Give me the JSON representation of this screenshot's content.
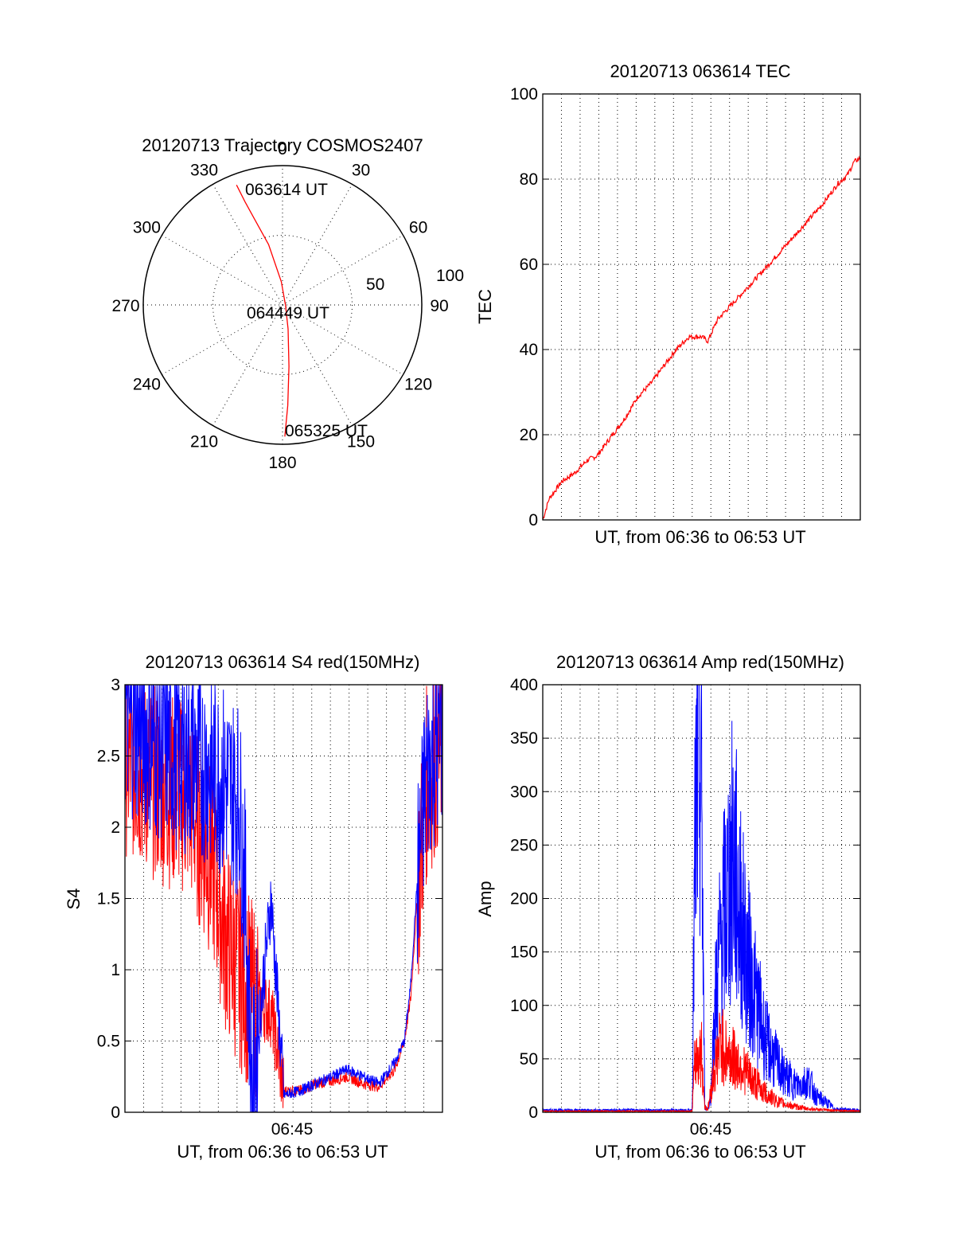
{
  "colors": {
    "red": "#ff0000",
    "blue": "#0000ff",
    "axis": "#000000"
  },
  "chart_data": [
    {
      "type": "polar",
      "title": "20120713 Trajectory COSMOS2407",
      "azimuth_labels": [
        "0",
        "30",
        "60",
        "90",
        "120",
        "150",
        "180",
        "210",
        "240",
        "270",
        "300",
        "330"
      ],
      "radial_labels": [
        "50",
        "100"
      ],
      "grid": true,
      "time_labels": [
        "063614 UT",
        "064449 UT",
        "065325 UT"
      ],
      "series": [
        {
          "color": "#ff0000",
          "points": [
            {
              "az": 339,
              "el": 7
            },
            {
              "az": 340,
              "el": 19
            },
            {
              "az": 342,
              "el": 32
            },
            {
              "az": 347,
              "el": 50
            },
            {
              "az": 357,
              "el": 75
            },
            {
              "az": 100,
              "el": 88
            },
            {
              "az": 167,
              "el": 74
            },
            {
              "az": 174,
              "el": 50
            },
            {
              "az": 177,
              "el": 25
            },
            {
              "az": 179,
              "el": 5
            }
          ]
        }
      ]
    },
    {
      "type": "line",
      "title": "20120713 063614 TEC",
      "xlabel": "UT, from 06:36 to 06:53 UT",
      "ylabel": "TEC",
      "ylim": [
        0,
        100
      ],
      "yticks": [
        "0",
        "20",
        "40",
        "60",
        "80",
        "100"
      ],
      "xlim": [
        0,
        1
      ],
      "grid": true,
      "series": [
        {
          "color": "#ff0000",
          "x": [
            0.0,
            0.02,
            0.06,
            0.1,
            0.14,
            0.17,
            0.22,
            0.26,
            0.3,
            0.34,
            0.38,
            0.42,
            0.46,
            0.5,
            0.52,
            0.55,
            0.6,
            0.65,
            0.7,
            0.76,
            0.82,
            0.88,
            0.93,
            0.96,
            0.98,
            1.0
          ],
          "y": [
            0,
            5,
            9,
            11,
            14,
            15,
            20,
            24,
            29,
            32,
            36,
            40,
            43,
            43,
            42,
            47,
            51,
            55,
            59,
            64,
            69,
            74,
            79,
            81,
            84,
            85
          ]
        }
      ]
    },
    {
      "type": "line",
      "title": "20120713 063614 S4 red(150MHz)",
      "xlabel": "UT, from 06:36 to 06:53 UT",
      "xticks": [
        "06:45"
      ],
      "ylabel": "S4",
      "ylim": [
        0,
        3
      ],
      "yticks": [
        "0",
        "0.5",
        "1",
        "1.5",
        "2",
        "2.5",
        "3"
      ],
      "xlim": [
        0,
        1
      ],
      "grid": true,
      "series": [
        {
          "color": "#ff0000",
          "x": [
            0.0,
            0.1,
            0.2,
            0.28,
            0.32,
            0.36,
            0.38,
            0.4,
            0.46,
            0.5,
            0.55,
            0.6,
            0.65,
            0.7,
            0.75,
            0.8,
            0.85,
            0.88,
            0.9,
            0.92,
            0.95,
            1.0
          ],
          "y": [
            2.5,
            2.3,
            2.2,
            1.7,
            1.2,
            1.0,
            0.9,
            0.8,
            0.7,
            0.15,
            0.15,
            0.2,
            0.22,
            0.25,
            0.2,
            0.18,
            0.3,
            0.5,
            0.8,
            1.5,
            2.3,
            2.6
          ]
        },
        {
          "color": "#0000ff",
          "x": [
            0.0,
            0.1,
            0.2,
            0.28,
            0.32,
            0.36,
            0.38,
            0.4,
            0.46,
            0.5,
            0.55,
            0.6,
            0.65,
            0.7,
            0.75,
            0.8,
            0.85,
            0.88,
            0.9,
            0.92,
            0.95,
            1.0
          ],
          "y": [
            2.8,
            2.6,
            2.5,
            2.4,
            2.3,
            2.2,
            1.5,
            0.1,
            1.5,
            0.12,
            0.15,
            0.2,
            0.25,
            0.3,
            0.25,
            0.2,
            0.35,
            0.5,
            0.9,
            1.6,
            2.4,
            2.7
          ]
        }
      ]
    },
    {
      "type": "line",
      "title": "20120713 063614 Amp red(150MHz)",
      "xlabel": "UT, from 06:36 to 06:53 UT",
      "xticks": [
        "06:45"
      ],
      "ylabel": "Amp",
      "ylim": [
        0,
        400
      ],
      "yticks": [
        "0",
        "50",
        "100",
        "150",
        "200",
        "250",
        "300",
        "350",
        "400"
      ],
      "xlim": [
        0,
        1
      ],
      "grid": true,
      "series": [
        {
          "color": "#0000ff",
          "x": [
            0.0,
            0.47,
            0.48,
            0.49,
            0.5,
            0.51,
            0.52,
            0.53,
            0.54,
            0.56,
            0.58,
            0.6,
            0.62,
            0.64,
            0.66,
            0.68,
            0.7,
            0.72,
            0.74,
            0.76,
            0.8,
            0.84,
            0.86,
            0.9,
            0.92,
            1.0
          ],
          "y": [
            2,
            2,
            250,
            340,
            300,
            5,
            3,
            15,
            90,
            160,
            200,
            240,
            190,
            150,
            120,
            95,
            70,
            55,
            45,
            35,
            25,
            30,
            15,
            8,
            3,
            2
          ]
        },
        {
          "color": "#ff0000",
          "x": [
            0.0,
            0.47,
            0.48,
            0.5,
            0.51,
            0.52,
            0.54,
            0.56,
            0.58,
            0.6,
            0.62,
            0.64,
            0.66,
            0.68,
            0.7,
            0.72,
            0.74,
            0.76,
            0.8,
            0.84,
            0.9,
            1.0
          ],
          "y": [
            1,
            1,
            50,
            55,
            5,
            3,
            40,
            65,
            55,
            50,
            45,
            38,
            30,
            25,
            18,
            14,
            10,
            8,
            5,
            3,
            2,
            1
          ]
        }
      ]
    }
  ]
}
